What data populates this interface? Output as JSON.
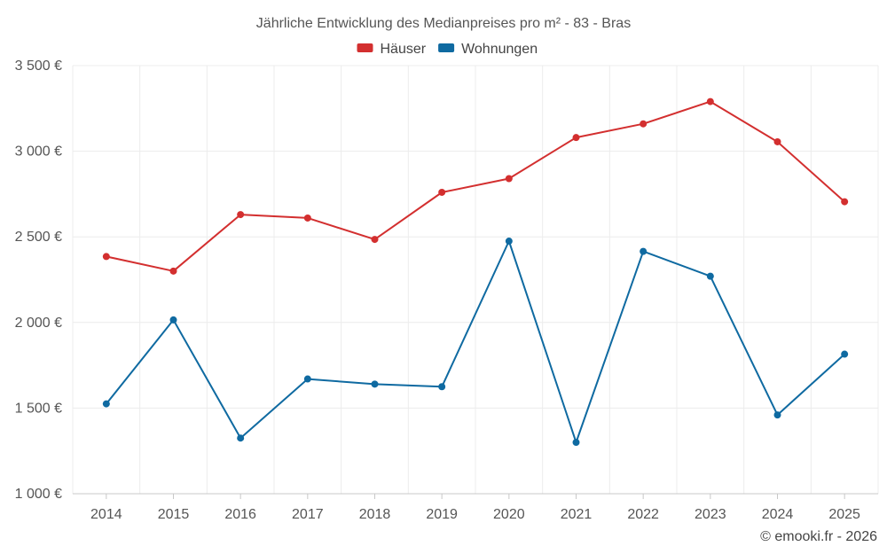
{
  "chart_data": {
    "type": "line",
    "title": "Jährliche Entwicklung des Medianpreises pro m² - 83 - Bras",
    "xlabel": "",
    "ylabel": "",
    "categories": [
      "2014",
      "2015",
      "2016",
      "2017",
      "2018",
      "2019",
      "2020",
      "2021",
      "2022",
      "2023",
      "2024",
      "2025"
    ],
    "series": [
      {
        "name": "Häuser",
        "color": "#d32f2f",
        "values": [
          2385,
          2300,
          2630,
          2610,
          2485,
          2760,
          2840,
          3080,
          3160,
          3290,
          3055,
          2705
        ]
      },
      {
        "name": "Wohnungen",
        "color": "#0f6aa1",
        "values": [
          1525,
          2015,
          1325,
          1670,
          1640,
          1625,
          2475,
          1300,
          2415,
          2270,
          1460,
          1815
        ]
      }
    ],
    "ylim": [
      1000,
      3500
    ],
    "yticks": [
      1000,
      1500,
      2000,
      2500,
      3000,
      3500
    ],
    "ytick_labels": [
      "1 000 €",
      "1 500 €",
      "2 000 €",
      "2 500 €",
      "3 000 €",
      "3 500 €"
    ],
    "grid": true,
    "legend_position": "top-center"
  },
  "credit": "© emooki.fr - 2026"
}
